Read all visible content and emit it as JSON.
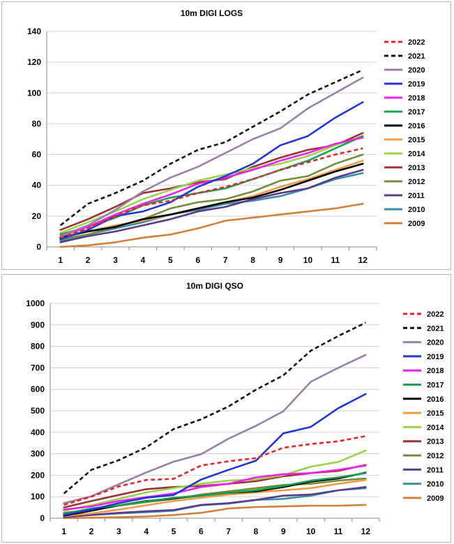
{
  "chart_data": [
    {
      "type": "line",
      "title": "10m DIGI LOGS",
      "xlabel": "",
      "ylabel": "",
      "categories": [
        "1",
        "2",
        "3",
        "4",
        "5",
        "6",
        "7",
        "8",
        "9",
        "10",
        "11",
        "12"
      ],
      "ylim": [
        0,
        140
      ],
      "yticks": [
        0,
        20,
        40,
        60,
        80,
        100,
        120,
        140
      ],
      "grid": true,
      "legend_position": "right",
      "series": [
        {
          "name": "2022",
          "color": "#e8262a",
          "dashed": true,
          "values": [
            6,
            12,
            20,
            27,
            30,
            35,
            39,
            44,
            50,
            55,
            60,
            64
          ]
        },
        {
          "name": "2021",
          "color": "#111111",
          "dashed": true,
          "values": [
            14,
            28,
            35,
            43,
            54,
            63,
            68,
            78,
            88,
            99,
            107,
            115
          ]
        },
        {
          "name": "2020",
          "color": "#9a7fa6",
          "dashed": false,
          "values": [
            7,
            14,
            24,
            36,
            45,
            52,
            61,
            70,
            77,
            90,
            100,
            110
          ]
        },
        {
          "name": "2019",
          "color": "#2037d8",
          "dashed": false,
          "values": [
            5,
            11,
            20,
            23,
            29,
            39,
            46,
            54,
            66,
            72,
            84,
            94
          ]
        },
        {
          "name": "2018",
          "color": "#ee22ee",
          "dashed": false,
          "values": [
            7,
            13,
            21,
            28,
            34,
            41,
            45,
            50,
            56,
            61,
            67,
            71
          ]
        },
        {
          "name": "2017",
          "color": "#1aa052",
          "dashed": false,
          "values": [
            8,
            13,
            19,
            27,
            32,
            35,
            38,
            44,
            50,
            56,
            64,
            72
          ]
        },
        {
          "name": "2016",
          "color": "#000000",
          "dashed": false,
          "values": [
            6,
            10,
            13,
            18,
            21,
            25,
            29,
            32,
            37,
            43,
            49,
            54
          ]
        },
        {
          "name": "2015",
          "color": "#f59a42",
          "dashed": false,
          "values": [
            6,
            10,
            14,
            17,
            21,
            25,
            29,
            33,
            39,
            44,
            50,
            56
          ]
        },
        {
          "name": "2014",
          "color": "#9bd24a",
          "dashed": false,
          "values": [
            9,
            16,
            23,
            31,
            37,
            43,
            47,
            51,
            54,
            59,
            66,
            72
          ]
        },
        {
          "name": "2013",
          "color": "#9a3434",
          "dashed": false,
          "values": [
            11,
            18,
            26,
            35,
            38,
            42,
            44,
            52,
            58,
            63,
            66,
            74
          ]
        },
        {
          "name": "2012",
          "color": "#6f8f3a",
          "dashed": false,
          "values": [
            5,
            8,
            13,
            18,
            25,
            29,
            31,
            36,
            43,
            46,
            54,
            60
          ]
        },
        {
          "name": "2011",
          "color": "#5b3c8c",
          "dashed": false,
          "values": [
            3,
            7,
            10,
            14,
            18,
            23,
            26,
            31,
            35,
            38,
            45,
            50
          ]
        },
        {
          "name": "2010",
          "color": "#3b8fa3",
          "dashed": false,
          "values": [
            4,
            8,
            12,
            16,
            21,
            24,
            28,
            30,
            33,
            38,
            44,
            48
          ]
        },
        {
          "name": "2009",
          "color": "#d2813a",
          "dashed": false,
          "values": [
            0,
            1,
            3,
            6,
            8,
            12,
            17,
            19,
            21,
            23,
            25,
            28
          ]
        }
      ]
    },
    {
      "type": "line",
      "title": "10m DIGI QSO",
      "xlabel": "",
      "ylabel": "",
      "categories": [
        "1",
        "2",
        "3",
        "4",
        "5",
        "6",
        "7",
        "8",
        "9",
        "10",
        "11",
        "12"
      ],
      "ylim": [
        0,
        1000
      ],
      "yticks": [
        0,
        100,
        200,
        300,
        400,
        500,
        600,
        700,
        800,
        900,
        1000
      ],
      "grid": true,
      "legend_position": "right",
      "series": [
        {
          "name": "2022",
          "color": "#e8262a",
          "dashed": true,
          "values": [
            62,
            100,
            148,
            178,
            183,
            245,
            265,
            280,
            328,
            345,
            358,
            382
          ]
        },
        {
          "name": "2021",
          "color": "#111111",
          "dashed": true,
          "values": [
            115,
            225,
            270,
            330,
            415,
            460,
            520,
            598,
            665,
            780,
            848,
            910
          ]
        },
        {
          "name": "2020",
          "color": "#9a7fa6",
          "dashed": false,
          "values": [
            70,
            102,
            158,
            213,
            263,
            298,
            370,
            430,
            498,
            635,
            700,
            760
          ]
        },
        {
          "name": "2019",
          "color": "#2037d8",
          "dashed": false,
          "values": [
            15,
            40,
            70,
            95,
            108,
            180,
            225,
            268,
            395,
            425,
            512,
            578
          ]
        },
        {
          "name": "2018",
          "color": "#ee22ee",
          "dashed": false,
          "values": [
            40,
            55,
            80,
            98,
            115,
            145,
            160,
            190,
            205,
            210,
            225,
            245
          ]
        },
        {
          "name": "2017",
          "color": "#1aa052",
          "dashed": false,
          "values": [
            20,
            45,
            60,
            78,
            95,
            105,
            118,
            130,
            150,
            175,
            190,
            210
          ]
        },
        {
          "name": "2016",
          "color": "#000000",
          "dashed": false,
          "values": [
            12,
            35,
            60,
            80,
            92,
            105,
            118,
            125,
            145,
            170,
            185,
            212
          ]
        },
        {
          "name": "2015",
          "color": "#f59a42",
          "dashed": false,
          "values": [
            10,
            22,
            40,
            60,
            80,
            95,
            110,
            120,
            130,
            140,
            160,
            178
          ]
        },
        {
          "name": "2014",
          "color": "#9bd24a",
          "dashed": false,
          "values": [
            35,
            60,
            90,
            120,
            140,
            160,
            175,
            180,
            200,
            240,
            262,
            315
          ]
        },
        {
          "name": "2013",
          "color": "#9a3434",
          "dashed": false,
          "values": [
            50,
            80,
            108,
            135,
            145,
            150,
            160,
            172,
            195,
            210,
            220,
            248
          ]
        },
        {
          "name": "2012",
          "color": "#6f8f3a",
          "dashed": false,
          "values": [
            25,
            40,
            58,
            75,
            90,
            110,
            125,
            140,
            155,
            160,
            175,
            185
          ]
        },
        {
          "name": "2011",
          "color": "#5b3c8c",
          "dashed": false,
          "values": [
            5,
            15,
            25,
            32,
            38,
            62,
            70,
            85,
            105,
            110,
            130,
            145
          ]
        },
        {
          "name": "2010",
          "color": "#3b8fa3",
          "dashed": false,
          "values": [
            8,
            15,
            22,
            28,
            35,
            60,
            68,
            85,
            90,
            105,
            130,
            140
          ]
        },
        {
          "name": "2009",
          "color": "#d2813a",
          "dashed": false,
          "values": [
            0,
            2,
            5,
            8,
            15,
            25,
            45,
            52,
            55,
            58,
            58,
            62
          ]
        }
      ]
    }
  ]
}
